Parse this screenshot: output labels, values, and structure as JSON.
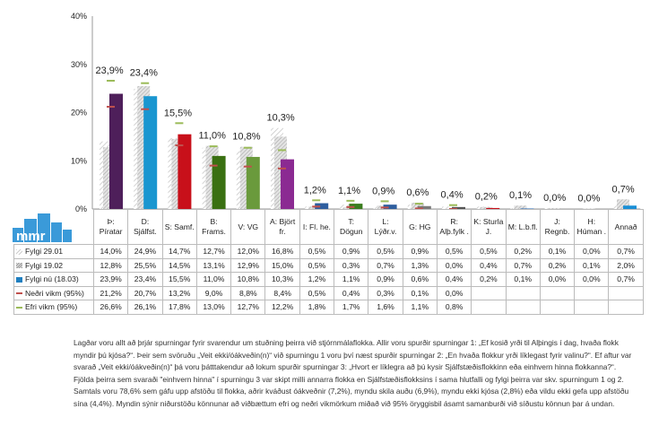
{
  "chart_data": {
    "type": "bar",
    "title": "",
    "ylim": [
      0,
      40
    ],
    "yticks": [
      "0%",
      "10%",
      "20%",
      "30%",
      "40%"
    ],
    "categories": [
      "Þ: Píratar",
      "D: Sjálfst.",
      "S: Samf.",
      "B: Frams.",
      "V: VG",
      "A: Björt fr.",
      "I: Fl. he.",
      "T: Dögun",
      "L: Lýðr.v.",
      "G: HG",
      "R: Alþ.fylk .",
      "K: Sturla J.",
      "M: L.b.fl.",
      "J: Regnb.",
      "H: Húman .",
      "Annað"
    ],
    "colors": [
      "#4e1f5a",
      "#1a96d0",
      "#c8101a",
      "#3a7012",
      "#6a9a3c",
      "#8b2a92",
      "#2e5e9e",
      "#3a7d1e",
      "#2e5e9e",
      "#7a7a7a",
      "#555555",
      "#c8101a",
      "#2e6eb8",
      "#888888",
      "#888888",
      "#1a8fd6"
    ],
    "series": [
      {
        "name": "Fylgi 29.01",
        "values": [
          14.0,
          24.9,
          14.7,
          12.7,
          12.0,
          16.8,
          0.5,
          0.9,
          0.5,
          0.9,
          0.5,
          0.5,
          0.2,
          0.1,
          0.0,
          0.7
        ],
        "display": [
          "14,0%",
          "24,9%",
          "14,7%",
          "12,7%",
          "12,0%",
          "16,8%",
          "0,5%",
          "0,9%",
          "0,5%",
          "0,9%",
          "0,5%",
          "0,5%",
          "0,2%",
          "0,1%",
          "0,0%",
          "0,7%"
        ]
      },
      {
        "name": "Fylgi 19.02",
        "values": [
          12.8,
          25.5,
          14.5,
          13.1,
          12.9,
          15.0,
          0.5,
          0.3,
          0.7,
          1.3,
          0.0,
          0.4,
          0.7,
          0.2,
          0.1,
          2.0
        ],
        "display": [
          "12,8%",
          "25,5%",
          "14,5%",
          "13,1%",
          "12,9%",
          "15,0%",
          "0,5%",
          "0,3%",
          "0,7%",
          "1,3%",
          "0,0%",
          "0,4%",
          "0,7%",
          "0,2%",
          "0,1%",
          "2,0%"
        ]
      },
      {
        "name": "Fylgi nú (18.03)",
        "values": [
          23.9,
          23.4,
          15.5,
          11.0,
          10.8,
          10.3,
          1.2,
          1.1,
          0.9,
          0.6,
          0.4,
          0.2,
          0.1,
          0.0,
          0.0,
          0.7
        ],
        "display": [
          "23,9%",
          "23,4%",
          "15,5%",
          "11,0%",
          "10,8%",
          "10,3%",
          "1,2%",
          "1,1%",
          "0,9%",
          "0,6%",
          "0,4%",
          "0,2%",
          "0,1%",
          "0,0%",
          "0,0%",
          "0,7%"
        ]
      },
      {
        "name": "Neðri vikm (95%)",
        "values": [
          21.2,
          20.7,
          13.2,
          9.0,
          8.8,
          8.4,
          0.5,
          0.4,
          0.3,
          0.1,
          0.0,
          null,
          null,
          null,
          null,
          null
        ],
        "display": [
          "21,2%",
          "20,7%",
          "13,2%",
          "9,0%",
          "8,8%",
          "8,4%",
          "0,5%",
          "0,4%",
          "0,3%",
          "0,1%",
          "0,0%",
          "",
          "",
          "",
          "",
          ""
        ]
      },
      {
        "name": "Efri vikm (95%)",
        "values": [
          26.6,
          26.1,
          17.8,
          13.0,
          12.7,
          12.2,
          1.8,
          1.7,
          1.6,
          1.1,
          0.8,
          null,
          null,
          null,
          null,
          null
        ],
        "display": [
          "26,6%",
          "26,1%",
          "17,8%",
          "13,0%",
          "12,7%",
          "12,2%",
          "1,8%",
          "1,7%",
          "1,6%",
          "1,1%",
          "0,8%",
          "",
          "",
          "",
          "",
          ""
        ]
      }
    ],
    "legend_colors": {
      "lower": "#c0504d",
      "upper": "#9bbb59",
      "current": "#1f7fc0"
    }
  },
  "logo_text": "mmr",
  "note": "Lagðar voru allt að þrjár spurningar fyrir svarendur um stuðning þeirra við stjórnmálaflokka. Allir voru spurðir spurningar 1: „Ef kosið yrði til Alþingis í dag, hvaða flokk myndir þú kjósa?“. Þeir sem svöruðu „Veit ekki/óákveðin(n)“ við spurningu 1 voru því næst spurðir spurningar 2: „En hvaða flokkur yrði líklegast fyrir valinu?“. Ef aftur var svarað „Veit ekki/óákveðin(n)“ þá voru þátttakendur að lokum spurðir spurningar 3: „Hvort er líklegra að þú kysir Sjálfstæðisflokkinn eða einhvern hinna flokkanna?“. Fjölda þeirra sem svaraði \"einhvern hinna\" í spurningu 3 var skipt milli annarra flokka en Sjálfstæðisflokksins í sama hlutfalli og fylgi þeirra var skv. spurningum 1 og 2. Samtals voru 78,6% sem gáfu upp afstöðu til flokka, aðrir kváðust óákveðnir (7,2%), myndu skila auðu (6,9%), myndu ekki kjósa (2,8%) eða vildu ekki gefa upp afstöðu sína (4,4%). Myndin sýnir niðurstöðu könnunar að viðbættum efri og neðri vikmörkum miðað við 95% öryggisbil ásamt samanburði við síðustu könnun þar á undan."
}
